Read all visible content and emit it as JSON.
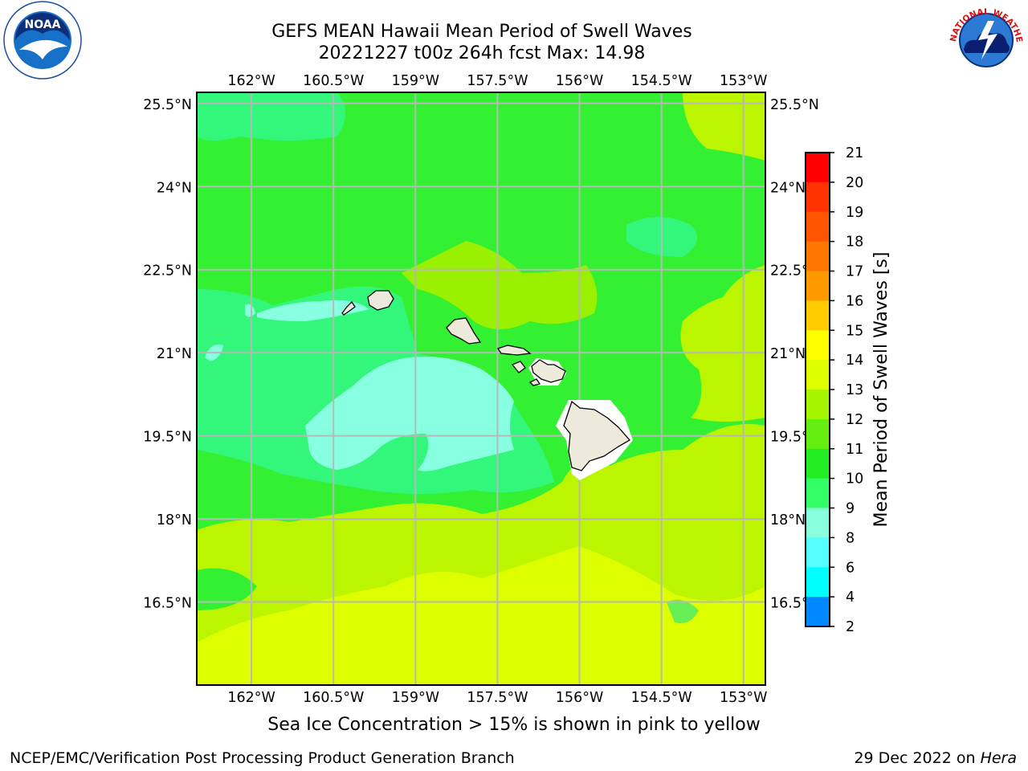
{
  "title": {
    "line1": "GEFS MEAN Hawaii Mean Period of Swell Waves",
    "line2": "20221227 t00z 264h fcst   Max: 14.98"
  },
  "axes": {
    "longitude_labels": [
      "162°W",
      "160.5°W",
      "159°W",
      "157.5°W",
      "156°W",
      "154.5°W",
      "153°W"
    ],
    "latitude_labels": [
      "25.5°N",
      "24°N",
      "22.5°N",
      "21°N",
      "19.5°N",
      "18°N",
      "16.5°N"
    ],
    "lon_values": [
      -162,
      -160.5,
      -159,
      -157.5,
      -156,
      -154.5,
      -153
    ],
    "lat_values": [
      25.5,
      24,
      22.5,
      21,
      19.5,
      18,
      16.5
    ],
    "lon_range": [
      -163,
      -152.6
    ],
    "lat_range": [
      15,
      25.7
    ]
  },
  "colorbar": {
    "label": "Mean Period of Swell Waves [s]",
    "ticks": [
      "21",
      "20",
      "19",
      "18",
      "17",
      "16",
      "15",
      "14",
      "13",
      "12",
      "11",
      "10",
      "9",
      "8",
      "6",
      "4",
      "2"
    ],
    "colors": [
      "#ff0000",
      "#ff3300",
      "#ff5500",
      "#ff7700",
      "#ff9900",
      "#ffcc00",
      "#ffff00",
      "#ddff00",
      "#a6f500",
      "#66ee11",
      "#22ee22",
      "#33ff66",
      "#88ffdd",
      "#55ffff",
      "#00ffff",
      "#0088ff",
      "#0000ff"
    ]
  },
  "map_colors": {
    "green": "#33f033",
    "light_green": "#66ee55",
    "yellow_green": "#bbf500",
    "yellow": "#ddff00",
    "aqua": "#88ffe0",
    "spring_green": "#33f77a",
    "land": "#eeeadb",
    "grid": "#b8b8b8"
  },
  "footer": {
    "subtitle": "Sea Ice Concentration > 15% is shown in pink to yellow",
    "credit": "NCEP/EMC/Verification Post Processing Product Generation Branch",
    "date_prefix": "29 Dec 2022 on ",
    "date_machine": "Hera"
  },
  "logos": {
    "noaa_text": "NOAA",
    "nws_text": "NATIONAL WEATHER SERVICE"
  }
}
